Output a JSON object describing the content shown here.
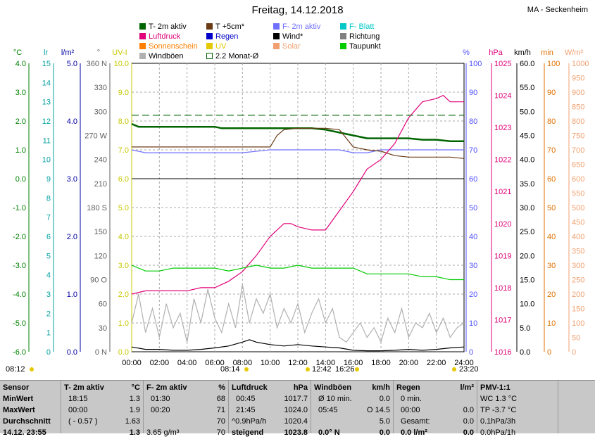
{
  "title": "Freitag, 14.12.2018",
  "station": "MA - Seckenheim",
  "legend": [
    {
      "label": "T- 2m aktiv",
      "color": "#006400"
    },
    {
      "label": "T +5cm*",
      "color": "#6b3a14"
    },
    {
      "label": "F- 2m aktiv",
      "color": "#7070ff"
    },
    {
      "label": "F- Blatt",
      "color": "#00c8c8"
    },
    {
      "label": "Luftdruck",
      "color": "#e0007a"
    },
    {
      "label": "Regen",
      "color": "#0000c8"
    },
    {
      "label": "Wind*",
      "color": "#000000"
    },
    {
      "label": "Richtung",
      "color": "#808080"
    },
    {
      "label": "Sonnenschein",
      "color": "#ff8000"
    },
    {
      "label": "UV",
      "color": "#e6c800"
    },
    {
      "label": "Solar",
      "color": "#f0a070"
    },
    {
      "label": "Taupunkt",
      "color": "#00cc00"
    },
    {
      "label": "Windböen",
      "color": "#b0b0b0"
    },
    {
      "label": "2.2 Monat-Ø",
      "color": "#006400"
    }
  ],
  "axes": {
    "temp": {
      "unit": "°C",
      "color": "#008000",
      "ticks": [
        "4.0",
        "3.0",
        "2.0",
        "1.0",
        "0.0",
        "-1.0",
        "-2.0",
        "-3.0",
        "-4.0",
        "-5.0",
        "-6.0"
      ]
    },
    "lr": {
      "unit": "lr",
      "color": "#00a0a0",
      "ticks": [
        "15",
        "14",
        "13",
        "12",
        "11",
        "10",
        "9",
        "8",
        "7",
        "6",
        "5",
        "4",
        "3",
        "2",
        "1",
        "0"
      ]
    },
    "rain": {
      "unit": "l/m²",
      "color": "#0000a0",
      "ticks": [
        "5.0",
        "4.0",
        "3.0",
        "2.0",
        "1.0",
        "0.0"
      ]
    },
    "dir": {
      "unit": "°",
      "color": "#606060",
      "ticks": [
        "360 N",
        "330",
        "300",
        "270 W",
        "240",
        "210",
        "180 S",
        "150",
        "120",
        "90  O",
        "60",
        "30",
        "0  N"
      ]
    },
    "uv": {
      "unit": "UV-I",
      "color": "#c8c800",
      "ticks": [
        "10.0",
        "9.0",
        "8.0",
        "7.0",
        "6.0",
        "5.0",
        "4.0",
        "3.0",
        "2.0",
        "1.0",
        "0.0"
      ]
    },
    "hum": {
      "unit": "%",
      "color": "#5050ff",
      "ticks": [
        "100",
        "90",
        "80",
        "70",
        "60",
        "50",
        "40",
        "30",
        "20",
        "10",
        "0"
      ]
    },
    "press": {
      "unit": "hPa",
      "color": "#e0007a",
      "ticks": [
        "1025",
        "1024",
        "1023",
        "1022",
        "1021",
        "1020",
        "1019",
        "1018",
        "1017",
        "1016"
      ]
    },
    "wind": {
      "unit": "km/h",
      "color": "#000000",
      "ticks": [
        "60.0",
        "55.0",
        "50.0",
        "45.0",
        "40.0",
        "35.0",
        "30.0",
        "25.0",
        "20.0",
        "15.0",
        "10.0",
        "5.0",
        "0.0"
      ]
    },
    "min": {
      "unit": "min",
      "color": "#e07000",
      "ticks": [
        "100",
        "90",
        "80",
        "70",
        "60",
        "50",
        "40",
        "30",
        "20",
        "10",
        "0"
      ]
    },
    "solar": {
      "unit": "W/m²",
      "color": "#f0a070",
      "ticks": [
        "1000",
        "950",
        "900",
        "850",
        "800",
        "750",
        "700",
        "650",
        "600",
        "550",
        "500",
        "450",
        "400",
        "350",
        "300",
        "250",
        "200",
        "150",
        "100",
        "50",
        "0"
      ]
    }
  },
  "chart_data": {
    "type": "line",
    "title": "Freitag, 14.12.2018",
    "x_ticks": [
      "00:00",
      "02:00",
      "04:00",
      "06:00",
      "08:00",
      "10:00",
      "12:00",
      "14:00",
      "16:00",
      "18:00",
      "20:00",
      "22:00",
      "24:00"
    ],
    "grid": true,
    "series": [
      {
        "name": "T- 2m aktiv",
        "axis": "temp",
        "color": "#006400",
        "x": [
          0,
          0.5,
          1,
          2,
          3,
          4,
          5,
          6,
          6.5,
          7,
          8,
          9,
          10,
          11,
          12,
          13,
          14,
          15,
          16,
          17,
          18,
          19,
          20,
          21,
          22,
          23,
          24
        ],
        "y": [
          1.9,
          1.8,
          1.8,
          1.8,
          1.8,
          1.8,
          1.8,
          1.8,
          1.75,
          1.75,
          1.75,
          1.75,
          1.75,
          1.75,
          1.75,
          1.75,
          1.7,
          1.6,
          1.5,
          1.4,
          1.4,
          1.4,
          1.4,
          1.35,
          1.35,
          1.3,
          1.3
        ]
      },
      {
        "name": "F- 2m aktiv",
        "axis": "hum",
        "color": "#7070ff",
        "x": [
          0,
          1,
          2,
          3,
          4,
          6,
          8,
          10,
          12,
          14,
          15,
          16,
          17,
          18,
          19,
          20,
          21,
          22,
          23,
          24
        ],
        "y": [
          70,
          69,
          69,
          69,
          69,
          69,
          69,
          70,
          70,
          70,
          70,
          69,
          69,
          70,
          70,
          70,
          70,
          70,
          70,
          70
        ]
      },
      {
        "name": "T +5cm*",
        "axis": "temp",
        "color": "#6b3a14",
        "x": [
          0,
          2,
          4,
          6,
          8,
          10,
          10.5,
          11,
          12,
          13,
          14,
          15,
          16,
          17,
          18,
          19,
          20,
          21,
          22,
          23,
          24
        ],
        "y": [
          1.1,
          1.1,
          1.1,
          1.1,
          1.1,
          1.1,
          1.5,
          1.7,
          1.75,
          1.75,
          1.75,
          1.7,
          1.1,
          1.0,
          0.95,
          0.8,
          0.75,
          0.75,
          0.75,
          0.75,
          0.7
        ]
      },
      {
        "name": "Luftdruck",
        "axis": "press",
        "color": "#e0007a",
        "x": [
          0,
          1,
          2,
          3,
          4,
          5,
          6,
          7,
          8,
          9,
          10,
          11,
          11.5,
          12,
          13,
          14,
          15,
          16,
          17,
          18,
          19,
          20,
          21,
          22,
          22.5,
          23,
          24
        ],
        "y": [
          1017.8,
          1017.9,
          1017.9,
          1017.9,
          1017.9,
          1018.0,
          1018.0,
          1018.2,
          1018.5,
          1019.0,
          1019.6,
          1020.0,
          1020.0,
          1019.9,
          1019.8,
          1019.8,
          1020.4,
          1021.0,
          1021.7,
          1022.0,
          1022.5,
          1023.3,
          1023.8,
          1023.9,
          1024.0,
          1023.8,
          1023.8
        ]
      },
      {
        "name": "Taupunkt",
        "axis": "temp",
        "color": "#00cc00",
        "x": [
          0,
          1,
          2,
          3,
          4,
          5,
          6,
          7,
          8,
          9,
          10,
          11,
          12,
          13,
          14,
          15,
          16,
          17,
          18,
          19,
          20,
          21,
          22,
          23,
          24
        ],
        "y": [
          -3.0,
          -3.2,
          -3.2,
          -3.1,
          -3.1,
          -3.1,
          -3.1,
          -3.2,
          -3.1,
          -3.0,
          -3.1,
          -3.1,
          -3.0,
          -3.1,
          -3.1,
          -3.1,
          -3.1,
          -3.3,
          -3.3,
          -3.3,
          -3.3,
          -3.4,
          -3.4,
          -3.5,
          -3.5
        ]
      },
      {
        "name": "Windböen",
        "axis": "wind",
        "color": "#b0b0b0",
        "x": [
          0,
          0.5,
          1,
          1.5,
          2,
          2.5,
          3,
          3.5,
          4,
          4.5,
          5,
          5.5,
          6,
          6.5,
          7,
          7.5,
          8,
          8.5,
          9,
          9.5,
          10,
          10.5,
          11,
          11.5,
          12,
          12.5,
          13,
          13.5,
          14,
          14.5,
          15,
          15.5,
          16,
          16.5,
          17,
          17.5,
          18,
          18.5,
          19,
          19.5,
          20,
          20.5,
          21,
          21.5,
          22,
          22.5,
          23,
          23.5,
          24
        ],
        "y": [
          6,
          12,
          4,
          9,
          3,
          10,
          5,
          8,
          2,
          11,
          6,
          13,
          7,
          4,
          10,
          5,
          14,
          6,
          11,
          8,
          12,
          5,
          9,
          6,
          10,
          4,
          8,
          11,
          6,
          9,
          3,
          2,
          4,
          6,
          3,
          5,
          2,
          7,
          4,
          9,
          3,
          6,
          5,
          8,
          4,
          7,
          3,
          5,
          6
        ]
      },
      {
        "name": "Wind*",
        "axis": "wind",
        "color": "#000000",
        "x": [
          0,
          1,
          2,
          3,
          4,
          5,
          6,
          7,
          8,
          8.5,
          9,
          10,
          11,
          12,
          13,
          14,
          15,
          16,
          17,
          18,
          19,
          20,
          21,
          22,
          23,
          24
        ],
        "y": [
          1,
          0.5,
          0.5,
          0.3,
          0.3,
          0.5,
          0.8,
          1.2,
          2,
          2.5,
          2,
          1.5,
          1.2,
          1.5,
          1.2,
          1,
          0.8,
          0.3,
          0.2,
          0.2,
          0.3,
          0.5,
          0.3,
          0.5,
          0.8,
          1
        ]
      },
      {
        "name": "2.2 Monat-Ø",
        "axis": "temp",
        "color": "#006400",
        "x": [
          0,
          24
        ],
        "y": [
          2.2,
          2.2
        ]
      }
    ],
    "ranges": {
      "temp": [
        -6,
        4
      ],
      "hum": [
        0,
        100
      ],
      "press": [
        1016,
        1025
      ],
      "wind": [
        0,
        60
      ]
    }
  },
  "timebar": {
    "sunrise": "08:12",
    "noon_left": "08:14",
    "noon_mid": "12:42",
    "noon_right": "16:26",
    "sunset": "23:20"
  },
  "table": {
    "sensor": {
      "head": "Sensor",
      "rows": [
        "MinWert",
        "MaxWert",
        "Durchschnitt",
        "14.12. 23:55"
      ]
    },
    "temp": {
      "head": "T- 2m aktiv",
      "unit": "°C",
      "rows": [
        [
          "18:15",
          "1.3"
        ],
        [
          "00:00",
          "1.9"
        ],
        [
          "( - 0.57 )",
          "1.63"
        ],
        [
          "",
          "1.3"
        ]
      ]
    },
    "hum": {
      "head": "F- 2m aktiv",
      "unit": "%",
      "rows": [
        [
          "01:30",
          "68"
        ],
        [
          "00:20",
          "71"
        ],
        [
          "",
          "70"
        ],
        [
          "3.65 g/m³",
          "70"
        ]
      ]
    },
    "press": {
      "head": "Luftdruck",
      "unit": "hPa",
      "rows": [
        [
          "00:45",
          "1017.7"
        ],
        [
          "21:45",
          "1024.0"
        ],
        [
          "^0.9hPa/h",
          "1020.4"
        ],
        [
          "steigend",
          "1023.8"
        ]
      ]
    },
    "wind": {
      "head": "Windböen",
      "unit": "km/h",
      "rows": [
        [
          "Ø 10 min.",
          "0.0"
        ],
        [
          "05:45",
          "O 14.5"
        ],
        [
          "",
          "5.0"
        ],
        [
          "0.0° N",
          "0.0"
        ]
      ]
    },
    "rain": {
      "head": "Regen",
      "unit": "l/m²",
      "rows": [
        [
          "0 min.",
          ""
        ],
        [
          "00:00",
          "0.0"
        ],
        [
          "Gesamt:",
          "0.0"
        ],
        [
          "0.0 l/m²",
          "0.0"
        ]
      ]
    },
    "pmv": {
      "head": "PMV-1:1",
      "rows": [
        "WC 1.3 °C",
        "TP -3.7 °C",
        "0.1hPa/3h",
        "0.0hPa/1h"
      ]
    }
  }
}
